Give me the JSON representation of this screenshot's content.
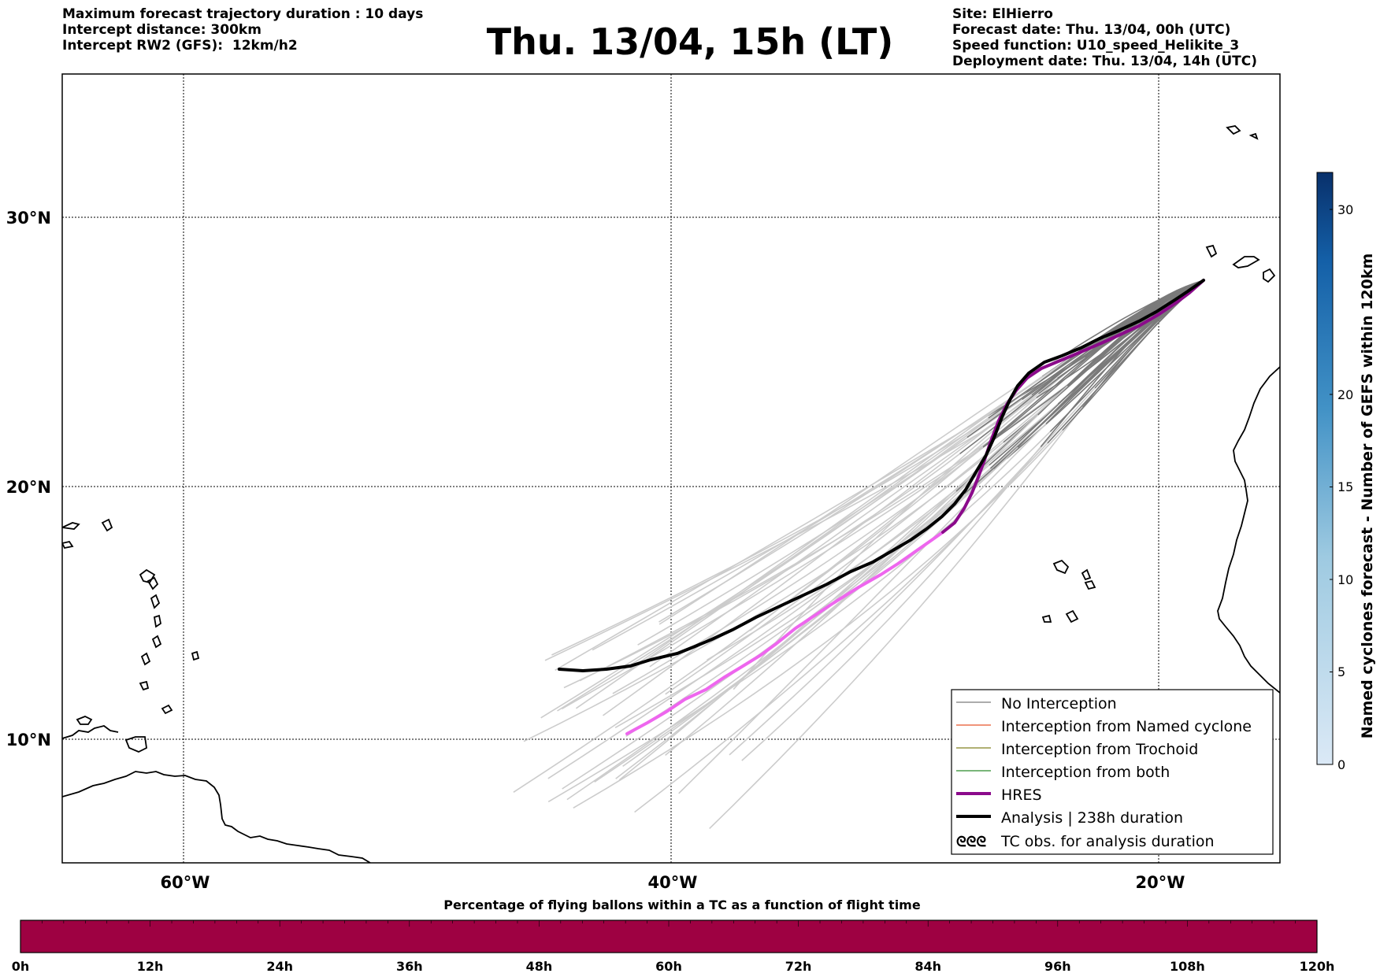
{
  "header": {
    "left_lines": [
      "Maximum forecast trajectory duration : 10 days",
      "Intercept distance: 300km",
      "Intercept RW2 (GFS):  12km/h2"
    ],
    "title": "Thu. 13/04, 15h (LT)",
    "right_lines": [
      "Site: ElHierro",
      "Forecast date: Thu. 13/04, 00h (UTC)",
      "Speed function: U10_speed_Helikite_3",
      "Deployment date: Thu. 13/04, 14h (UTC)"
    ]
  },
  "map": {
    "lon_range": [
      -65,
      -15
    ],
    "lat_range": [
      5.3,
      34.6
    ],
    "lon_labels": [
      "60°W",
      "40°W",
      "20°W"
    ],
    "lat_labels": [
      "30°N",
      "20°N",
      "10°N"
    ],
    "gridlines": "dotted",
    "launch_site": {
      "lon": -18.1,
      "lat": 27.7
    },
    "analysis_end": {
      "lon": -44.5,
      "lat": 12.6
    },
    "hres_end": {
      "lon": -41.8,
      "lat": 10.2
    },
    "colors": {
      "no_interception": "#7a7a7a",
      "no_interception_late": "#cccccc",
      "named_cyclone": "#e8532a",
      "trochoid": "#808020",
      "both": "#2a8a2a",
      "hres": "#8b0a8b",
      "hres_late": "#ee66ee",
      "analysis": "#000000"
    }
  },
  "legend": {
    "position": "lower-right",
    "items": [
      {
        "label": "No Interception",
        "style": "thin-gray"
      },
      {
        "label": "Interception from Named cyclone",
        "style": "thin-orange"
      },
      {
        "label": "Interception from Trochoid",
        "style": "thin-olive"
      },
      {
        "label": "Interception from both",
        "style": "thin-green"
      },
      {
        "label": "HRES",
        "style": "thick-purple"
      },
      {
        "label": "Analysis | 238h duration",
        "style": "thick-black"
      },
      {
        "label": "TC obs. for analysis duration",
        "style": "cyclone-symbols"
      }
    ],
    "symbol_text": "ᘓᘓᘓ"
  },
  "colorbar_right": {
    "label": "Named cyclones forecast - Number of GEFS within 120km",
    "ticks": [
      "0",
      "5",
      "10",
      "15",
      "20",
      "30"
    ],
    "range": [
      0,
      32
    ],
    "color_low": "#dbe9f6",
    "color_high": "#08306b"
  },
  "timebar": {
    "title": "Percentage of flying ballons within a TC as a function of flight time",
    "ticks": [
      "0h",
      "12h",
      "24h",
      "36h",
      "48h",
      "60h",
      "72h",
      "84h",
      "96h",
      "108h",
      "120h"
    ],
    "fill_color": "#9e0142",
    "fraction_shown": 1.0
  }
}
